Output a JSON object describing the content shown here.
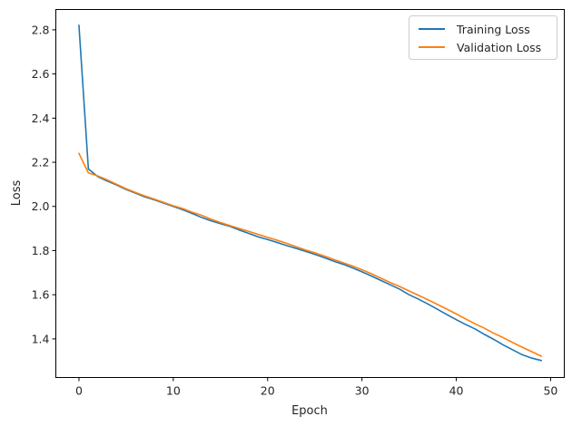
{
  "chart_data": {
    "type": "line",
    "title": "",
    "xlabel": "Epoch",
    "ylabel": "Loss",
    "xlim": [
      -2.45,
      51.45
    ],
    "ylim": [
      1.225,
      2.892
    ],
    "xticks": [
      0,
      10,
      20,
      30,
      40,
      50
    ],
    "xtick_labels": [
      "0",
      "10",
      "20",
      "30",
      "40",
      "50"
    ],
    "yticks": [
      1.4,
      1.6,
      1.8,
      2.0,
      2.2,
      2.4,
      2.6,
      2.8
    ],
    "ytick_labels": [
      "1.4",
      "1.6",
      "1.8",
      "2.0",
      "2.2",
      "2.4",
      "2.6",
      "2.8"
    ],
    "grid": false,
    "legend_position": "upper right",
    "x": [
      0,
      1,
      2,
      3,
      4,
      5,
      6,
      7,
      8,
      9,
      10,
      11,
      12,
      13,
      14,
      15,
      16,
      17,
      18,
      19,
      20,
      21,
      22,
      23,
      24,
      25,
      26,
      27,
      28,
      29,
      30,
      31,
      32,
      33,
      34,
      35,
      36,
      37,
      38,
      39,
      40,
      41,
      42,
      43,
      44,
      45,
      46,
      47,
      48,
      49
    ],
    "series": [
      {
        "name": "Training Loss",
        "color": "#1f77b4",
        "values": [
          2.82,
          2.17,
          2.135,
          2.115,
          2.097,
          2.077,
          2.06,
          2.043,
          2.03,
          2.015,
          2.0,
          1.985,
          1.968,
          1.95,
          1.935,
          1.922,
          1.91,
          1.893,
          1.878,
          1.862,
          1.85,
          1.837,
          1.823,
          1.81,
          1.797,
          1.783,
          1.768,
          1.752,
          1.738,
          1.722,
          1.704,
          1.685,
          1.665,
          1.645,
          1.625,
          1.6,
          1.58,
          1.558,
          1.534,
          1.51,
          1.487,
          1.465,
          1.445,
          1.42,
          1.397,
          1.372,
          1.35,
          1.328,
          1.313,
          1.302
        ]
      },
      {
        "name": "Validation Loss",
        "color": "#ff7f0e",
        "values": [
          2.24,
          2.152,
          2.138,
          2.12,
          2.1,
          2.08,
          2.063,
          2.047,
          2.033,
          2.018,
          2.003,
          1.99,
          1.974,
          1.96,
          1.942,
          1.927,
          1.913,
          1.9,
          1.887,
          1.873,
          1.86,
          1.847,
          1.833,
          1.818,
          1.803,
          1.79,
          1.775,
          1.76,
          1.745,
          1.73,
          1.713,
          1.695,
          1.675,
          1.655,
          1.637,
          1.617,
          1.597,
          1.577,
          1.556,
          1.535,
          1.513,
          1.49,
          1.468,
          1.448,
          1.425,
          1.405,
          1.383,
          1.362,
          1.342,
          1.322
        ]
      }
    ]
  },
  "legend": {
    "items": [
      {
        "label": "Training Loss",
        "color": "#1f77b4"
      },
      {
        "label": "Validation Loss",
        "color": "#ff7f0e"
      }
    ]
  }
}
